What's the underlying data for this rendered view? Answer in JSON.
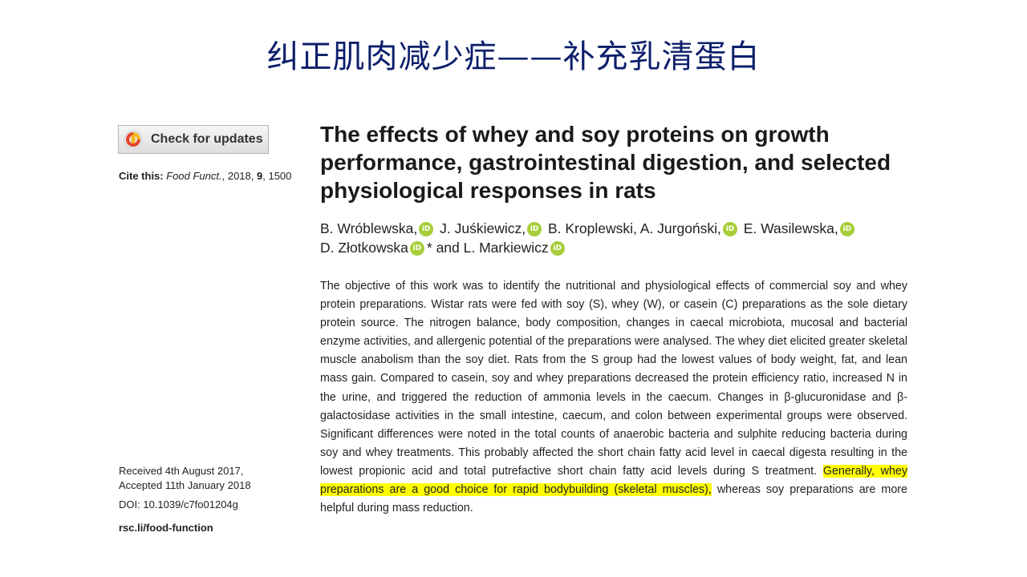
{
  "slide": {
    "title": "纠正肌肉减少症——补充乳清蛋白"
  },
  "sidebar": {
    "check_updates_label": "Check for updates",
    "cite_prefix": "Cite this:",
    "cite_journal": "Food Funct.",
    "cite_year": ", 2018,",
    "cite_volume": "9",
    "cite_page": ", 1500",
    "received": "Received 4th August 2017,",
    "accepted": "Accepted 11th January 2018",
    "doi": "DOI: 10.1039/c7fo01204g",
    "rsc_link": "rsc.li/food-function"
  },
  "article": {
    "title": "The effects of whey and soy proteins on growth performance, gastrointestinal digestion, and selected physiological responses in rats",
    "authors": [
      {
        "name": "B. Wróblewska,",
        "orcid": true
      },
      {
        "name": "J. Juśkiewicz,",
        "orcid": true
      },
      {
        "name": "B. Kroplewski,",
        "orcid": false
      },
      {
        "name": "A. Jurgoński,",
        "orcid": true
      },
      {
        "name": "E. Wasilewska,",
        "orcid": true
      },
      {
        "name": "D. Złotkowska",
        "orcid": true,
        "suffix": "* and"
      },
      {
        "name": "L. Markiewicz",
        "orcid": true
      }
    ],
    "orcid_glyph": "iD",
    "abstract_main": "The objective of this work was to identify the nutritional and physiological effects of commercial soy and whey protein preparations. Wistar rats were fed with soy (S), whey (W), or casein (C) preparations as the sole dietary protein source. The nitrogen balance, body composition, changes in caecal microbiota, mucosal and bacterial enzyme activities, and allergenic potential of the preparations were analysed. The whey diet elicited greater skeletal muscle anabolism than the soy diet. Rats from the S group had the lowest values of body weight, fat, and lean mass gain. Compared to casein, soy and whey preparations decreased the protein efficiency ratio, increased N in the urine, and triggered the reduction of ammonia levels in the caecum. Changes in β-glucuronidase and β-galactosidase activities in the small intestine, caecum, and colon between experimental groups were observed. Significant differences were noted in the total counts of anaerobic bacteria and sulphite reducing bacteria during soy and whey treatments. This probably affected the short chain fatty acid level in caecal digesta resulting in the lowest propionic acid and total putrefactive short chain fatty acid levels during S treatment.",
    "abstract_highlight": "Generally, whey preparations are a good choice for rapid bodybuilding (skeletal muscles),",
    "abstract_end": " whereas soy preparations are more helpful during mass reduction."
  }
}
